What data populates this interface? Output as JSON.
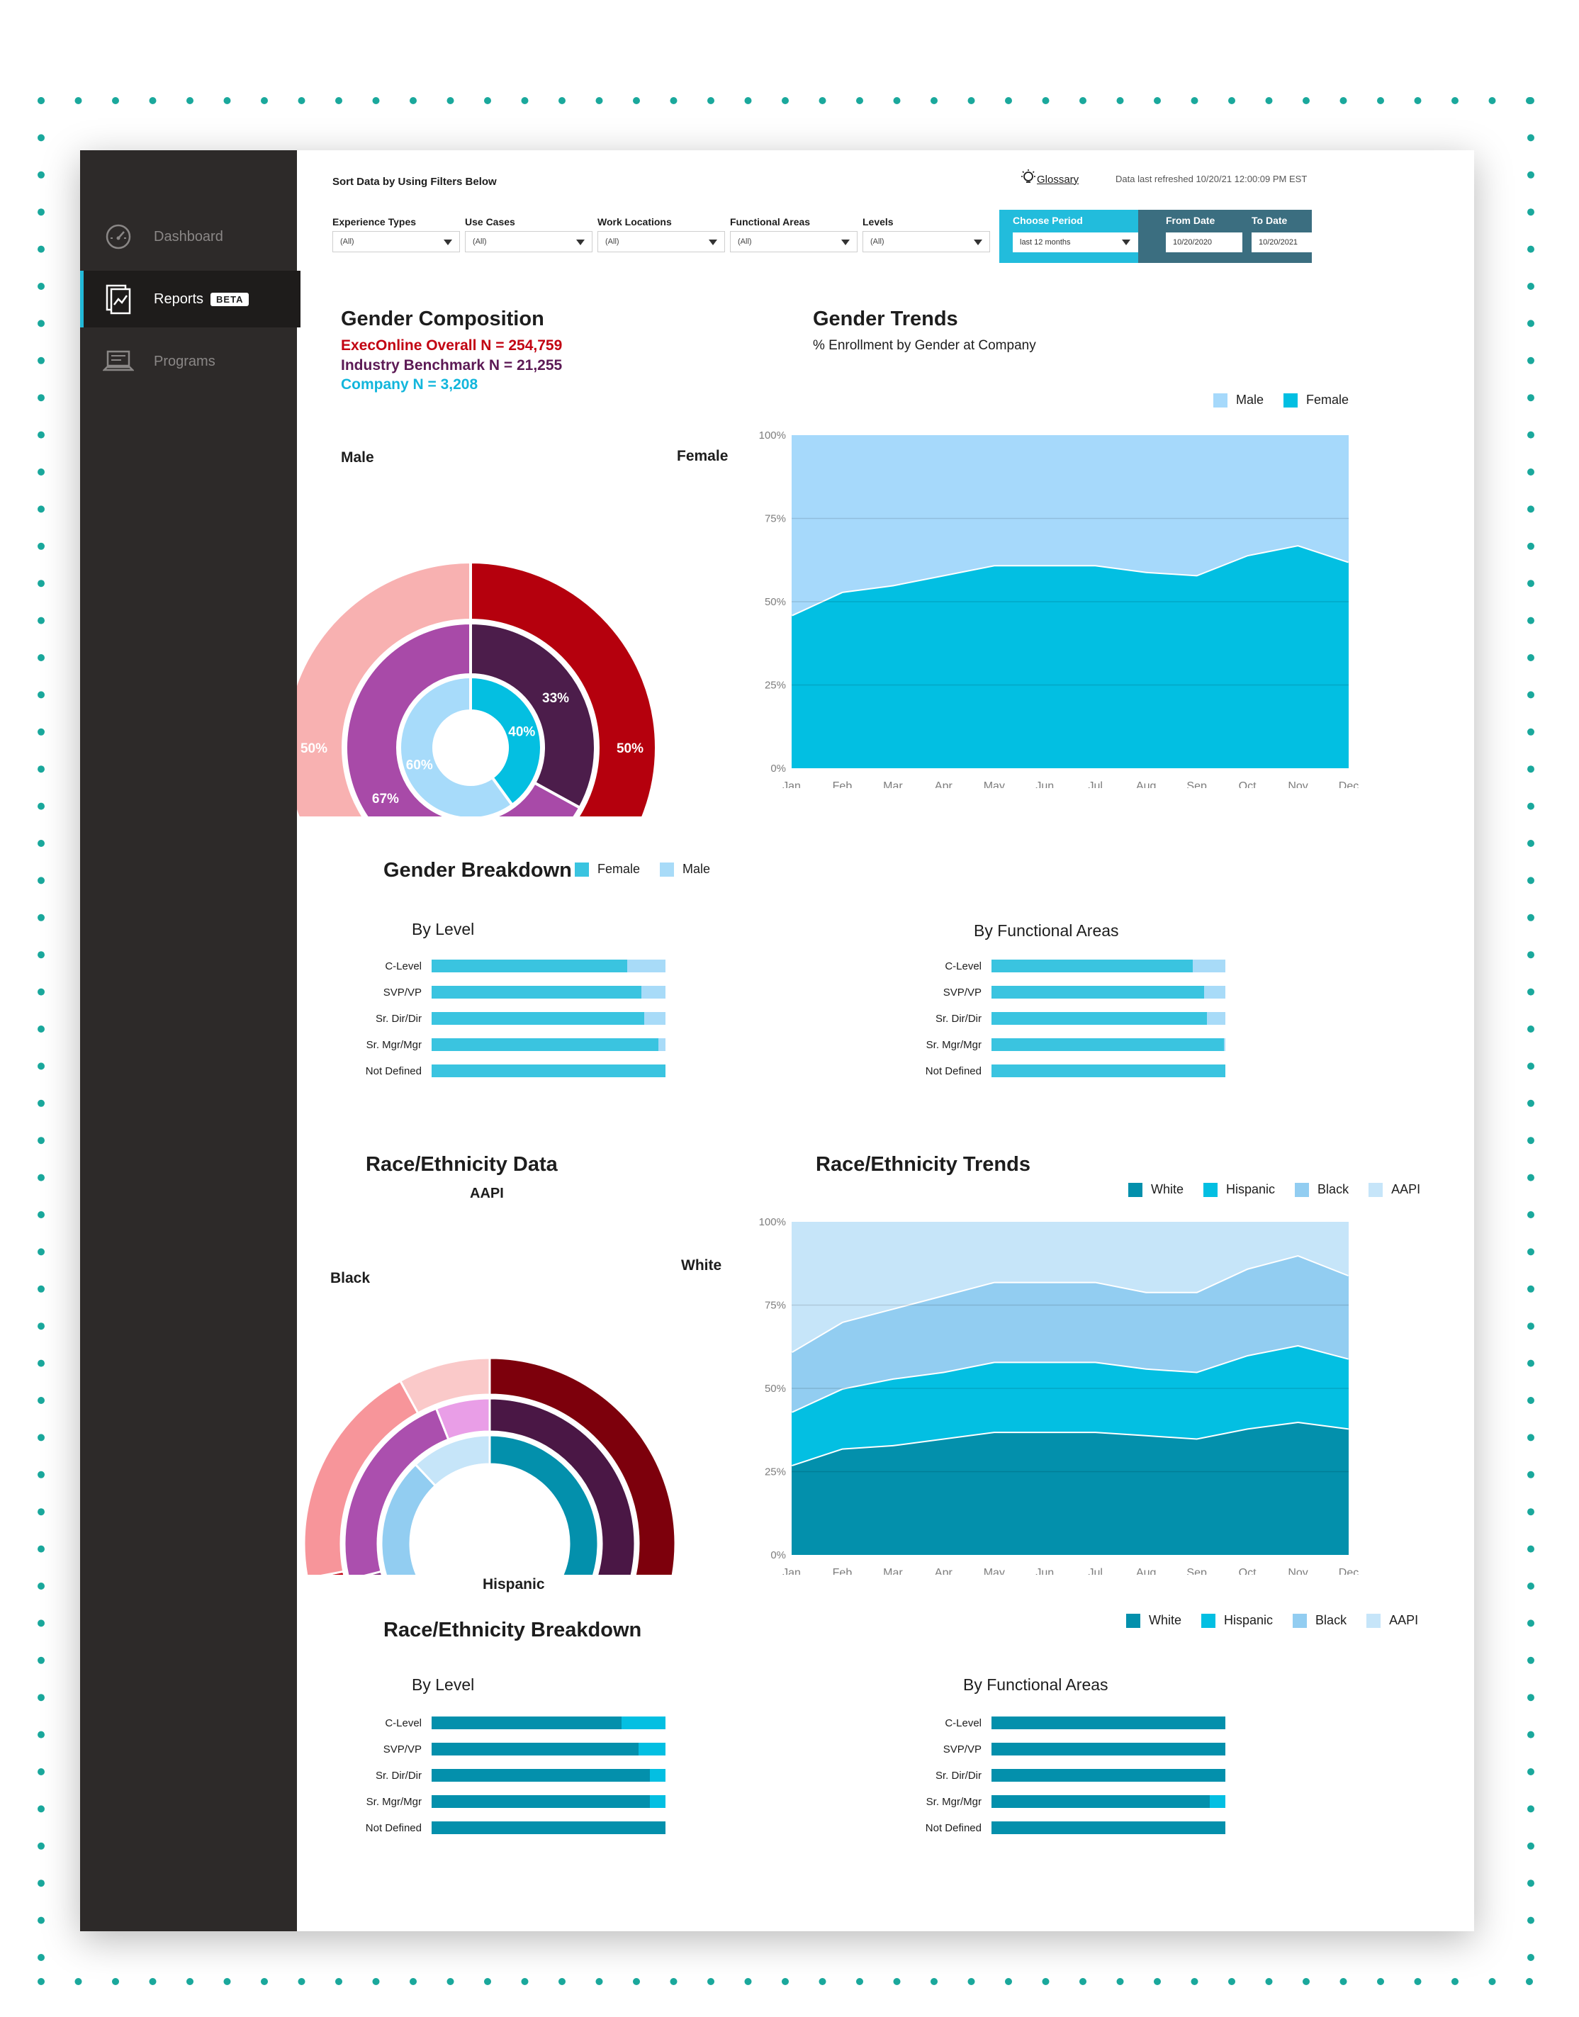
{
  "sidebar": {
    "items": [
      {
        "label": "Dashboard",
        "icon": "speedometer-icon"
      },
      {
        "label": "Reports",
        "icon": "report-chart-icon",
        "badge": "BETA",
        "active": true
      },
      {
        "label": "Programs",
        "icon": "laptop-icon"
      }
    ]
  },
  "header": {
    "sort_title": "Sort Data by Using Filters Below",
    "glossary": "Glossary",
    "refreshed": "Data last refreshed 10/20/21 12:00:09 PM EST"
  },
  "filters": [
    {
      "label": "Experience Types",
      "value": "(All)"
    },
    {
      "label": "Use Cases",
      "value": "(All)"
    },
    {
      "label": "Work Locations",
      "value": "(All)"
    },
    {
      "label": "Functional Areas",
      "value": "(All)"
    },
    {
      "label": "Levels",
      "value": "(All)"
    }
  ],
  "period": {
    "label": "Choose Period",
    "value": "last 12 months",
    "from_label": "From Date",
    "from_value": "10/20/2020",
    "to_label": "To Date",
    "to_value": "10/20/2021"
  },
  "colors": {
    "gender": {
      "male_light": "#f8b1b1",
      "female_dark": "#b5000d",
      "bench_a": "#a84aa8",
      "bench_b": "#4c1d4b",
      "company_male": "#a7dbfa",
      "company_female": "#04bfe1"
    },
    "trend_male": "#a6d9fb",
    "trend_female": "#02bfe2",
    "bar_female": "#3ac4e0",
    "bar_male": "#a8dbf8",
    "race": {
      "white": "#0390ac",
      "hispanic": "#03bfe2",
      "black": "#92cdf1",
      "aapi": "#c6e5f9"
    }
  },
  "gender_composition": {
    "title": "Gender Composition",
    "overall": "ExecOnline Overall N = 254,759",
    "benchmark": "Industry Benchmark N = 21,255",
    "company": "Company N = 3,208",
    "male_label": "Male",
    "female_label": "Female",
    "rings": [
      {
        "name": "ExecOnline Overall",
        "male": 50,
        "female": 50,
        "male_text": "50%",
        "female_text": "50%"
      },
      {
        "name": "Industry Benchmark",
        "male": 67,
        "female": 33,
        "male_text": "67%",
        "female_text": "33%"
      },
      {
        "name": "Company",
        "male": 60,
        "female": 40,
        "male_text": "60%",
        "female_text": "40%"
      }
    ]
  },
  "gender_trends": {
    "title": "Gender Trends",
    "subtitle": "% Enrollment by Gender at Company",
    "legend": [
      "Male",
      "Female"
    ],
    "y_ticks": [
      "100%",
      "75%",
      "50%",
      "25%",
      "0%"
    ],
    "chart_data": {
      "type": "area",
      "title": "Gender Trends",
      "subtitle": "% Enrollment by Gender at Company",
      "x": [
        "Jan",
        "Feb",
        "Mar",
        "Apr",
        "May",
        "Jun",
        "Jul",
        "Aug",
        "Sep",
        "Oct",
        "Nov",
        "Dec"
      ],
      "ylim": [
        0,
        100
      ],
      "stacked": true,
      "series": [
        {
          "name": "Female",
          "values": [
            46,
            53,
            55,
            58,
            61,
            61,
            61,
            59,
            58,
            64,
            67,
            62
          ]
        },
        {
          "name": "Male",
          "values": [
            54,
            47,
            45,
            42,
            39,
            39,
            39,
            41,
            42,
            36,
            33,
            38
          ]
        }
      ]
    }
  },
  "gender_breakdown": {
    "title": "Gender Breakdown",
    "legend": [
      "Female",
      "Male"
    ],
    "by_level_title": "By Level",
    "by_area_title": "By Functional Areas",
    "chart_data": [
      {
        "type": "bar",
        "title": "By Level",
        "stacked": true,
        "orientation": "horizontal",
        "categories": [
          "C-Level",
          "SVP/VP",
          "Sr. Dir/Dir",
          "Sr. Mgr/Mgr",
          "Not Defined"
        ],
        "series": [
          {
            "name": "Female",
            "values": [
              69,
              74,
              75,
              80,
              88
            ]
          },
          {
            "name": "Male",
            "values": [
              31,
              26,
              25,
              20,
              12
            ]
          }
        ]
      },
      {
        "type": "bar",
        "title": "By Functional Areas",
        "stacked": true,
        "orientation": "horizontal",
        "categories": [
          "C-Level",
          "SVP/VP",
          "Sr. Dir/Dir",
          "Sr. Mgr/Mgr",
          "Not Defined"
        ],
        "series": [
          {
            "name": "Female",
            "values": [
              71,
              75,
              76,
              82,
              89
            ]
          },
          {
            "name": "Male",
            "values": [
              29,
              25,
              24,
              18,
              11
            ]
          }
        ]
      }
    ]
  },
  "race_data": {
    "title": "Race/Ethnicity Data",
    "labels": {
      "aapi": "AAPI",
      "white": "White",
      "black": "Black",
      "hispanic": "Hispanic"
    },
    "rings": [
      {
        "name": "ExecOnline Overall",
        "white": 40,
        "hispanic": 32,
        "black": 20,
        "aapi": 8
      },
      {
        "name": "Industry Benchmark",
        "white": 37,
        "hispanic": 34,
        "black": 23,
        "aapi": 6
      },
      {
        "name": "Company",
        "white": 34,
        "hispanic": 27,
        "black": 27,
        "aapi": 12
      }
    ]
  },
  "race_trends": {
    "title": "Race/Ethnicity Trends",
    "legend": [
      "White",
      "Hispanic",
      "Black",
      "AAPI"
    ],
    "y_ticks": [
      "100%",
      "75%",
      "50%",
      "25%",
      "0%"
    ],
    "chart_data": {
      "type": "area",
      "title": "Race/Ethnicity Trends",
      "x": [
        "Jan",
        "Feb",
        "Mar",
        "Apr",
        "May",
        "Jun",
        "Jul",
        "Aug",
        "Sep",
        "Oct",
        "Nov",
        "Dec"
      ],
      "ylim": [
        0,
        100
      ],
      "stacked": true,
      "series": [
        {
          "name": "White",
          "values": [
            27,
            32,
            33,
            35,
            37,
            37,
            37,
            36,
            35,
            38,
            40,
            38
          ]
        },
        {
          "name": "Hispanic",
          "values": [
            16,
            18,
            20,
            20,
            21,
            21,
            21,
            20,
            20,
            22,
            23,
            21
          ]
        },
        {
          "name": "Black",
          "values": [
            18,
            20,
            21,
            23,
            24,
            24,
            24,
            23,
            24,
            26,
            27,
            25
          ]
        },
        {
          "name": "AAPI",
          "values": [
            39,
            30,
            26,
            22,
            18,
            18,
            18,
            21,
            21,
            14,
            10,
            16
          ]
        }
      ]
    }
  },
  "race_breakdown": {
    "title": "Race/Ethnicity Breakdown",
    "legend": [
      "White",
      "Hispanic",
      "Black",
      "AAPI"
    ],
    "by_level_title": "By Level",
    "by_area_title": "By Functional Areas",
    "chart_data": [
      {
        "type": "bar",
        "title": "By Level",
        "stacked": true,
        "orientation": "horizontal",
        "categories": [
          "C-Level",
          "SVP/VP",
          "Sr. Dir/Dir",
          "Sr. Mgr/Mgr",
          "Not Defined"
        ],
        "series": [
          {
            "name": "White",
            "values": [
              67,
              73,
              77,
              77,
              83
            ]
          },
          {
            "name": "Hispanic",
            "values": [
              17,
              21,
              14,
              12,
              13
            ]
          },
          {
            "name": "Black",
            "values": [
              11,
              3,
              5,
              8,
              2
            ]
          },
          {
            "name": "AAPI",
            "values": [
              5,
              3,
              4,
              3,
              2
            ]
          }
        ]
      },
      {
        "type": "bar",
        "title": "By Functional Areas",
        "stacked": true,
        "orientation": "horizontal",
        "categories": [
          "C-Level",
          "SVP/VP",
          "Sr. Dir/Dir",
          "Sr. Mgr/Mgr",
          "Not Defined"
        ],
        "series": [
          {
            "name": "White",
            "values": [
              83,
              87,
              87,
              77,
              83
            ]
          },
          {
            "name": "Hispanic",
            "values": [
              9,
              5,
              7,
              12,
              8
            ]
          },
          {
            "name": "Black",
            "values": [
              5,
              5,
              3,
              8,
              5
            ]
          },
          {
            "name": "AAPI",
            "values": [
              3,
              3,
              3,
              3,
              4
            ]
          }
        ]
      }
    ]
  }
}
